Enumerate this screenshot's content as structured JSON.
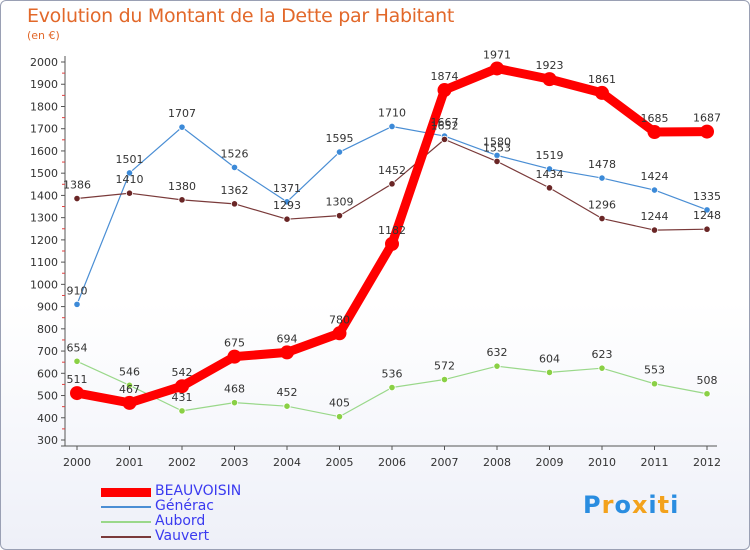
{
  "title": "Evolution du Montant de la Dette par Habitant",
  "subtitle": "(en €)",
  "logo": {
    "letters": [
      "P",
      "r",
      "o",
      "x",
      "i",
      "t",
      "i"
    ],
    "colors": [
      "#2a8de0",
      "#f3a21c",
      "#2a8de0",
      "#f3a21c",
      "#2a8de0",
      "#f3a21c",
      "#2a8de0"
    ]
  },
  "chart_data": {
    "type": "line",
    "categories": [
      "2000",
      "2001",
      "2002",
      "2003",
      "2004",
      "2005",
      "2006",
      "2007",
      "2008",
      "2009",
      "2010",
      "2011",
      "2012"
    ],
    "ylim": [
      300,
      2000
    ],
    "yticks": [
      300,
      400,
      500,
      600,
      700,
      800,
      900,
      1000,
      1100,
      1200,
      1300,
      1400,
      1500,
      1600,
      1700,
      1800,
      1900,
      2000
    ],
    "grid": false,
    "legend_position": "bottom-left",
    "series": [
      {
        "name": "Générac",
        "color": "#4a8ed4",
        "point_color": "#3c8ad8",
        "width": 1.2,
        "marker": 3.2,
        "values": [
          910,
          1501,
          1707,
          1526,
          1371,
          1595,
          1710,
          1667,
          1580,
          1519,
          1478,
          1424,
          1335
        ]
      },
      {
        "name": "Aubord",
        "color": "#9ad88a",
        "point_color": "#8ad045",
        "width": 1.2,
        "marker": 3.2,
        "values": [
          654,
          546,
          431,
          468,
          452,
          405,
          536,
          572,
          632,
          604,
          623,
          553,
          508
        ]
      },
      {
        "name": "Vauvert",
        "color": "#7a3a3a",
        "point_color": "#6a2626",
        "width": 1.2,
        "marker": 3.2,
        "values": [
          1386,
          1410,
          1380,
          1362,
          1293,
          1309,
          1452,
          1652,
          1553,
          1434,
          1296,
          1244,
          1248
        ]
      },
      {
        "name": "BEAUVOISIN",
        "color": "#ff0000",
        "point_color": "#ff0000",
        "width": 9,
        "marker": 7,
        "values": [
          511,
          467,
          542,
          675,
          694,
          780,
          1182,
          1874,
          1971,
          1923,
          1861,
          1685,
          1687
        ]
      }
    ],
    "legend_order": [
      "BEAUVOISIN",
      "Générac",
      "Aubord",
      "Vauvert"
    ]
  }
}
